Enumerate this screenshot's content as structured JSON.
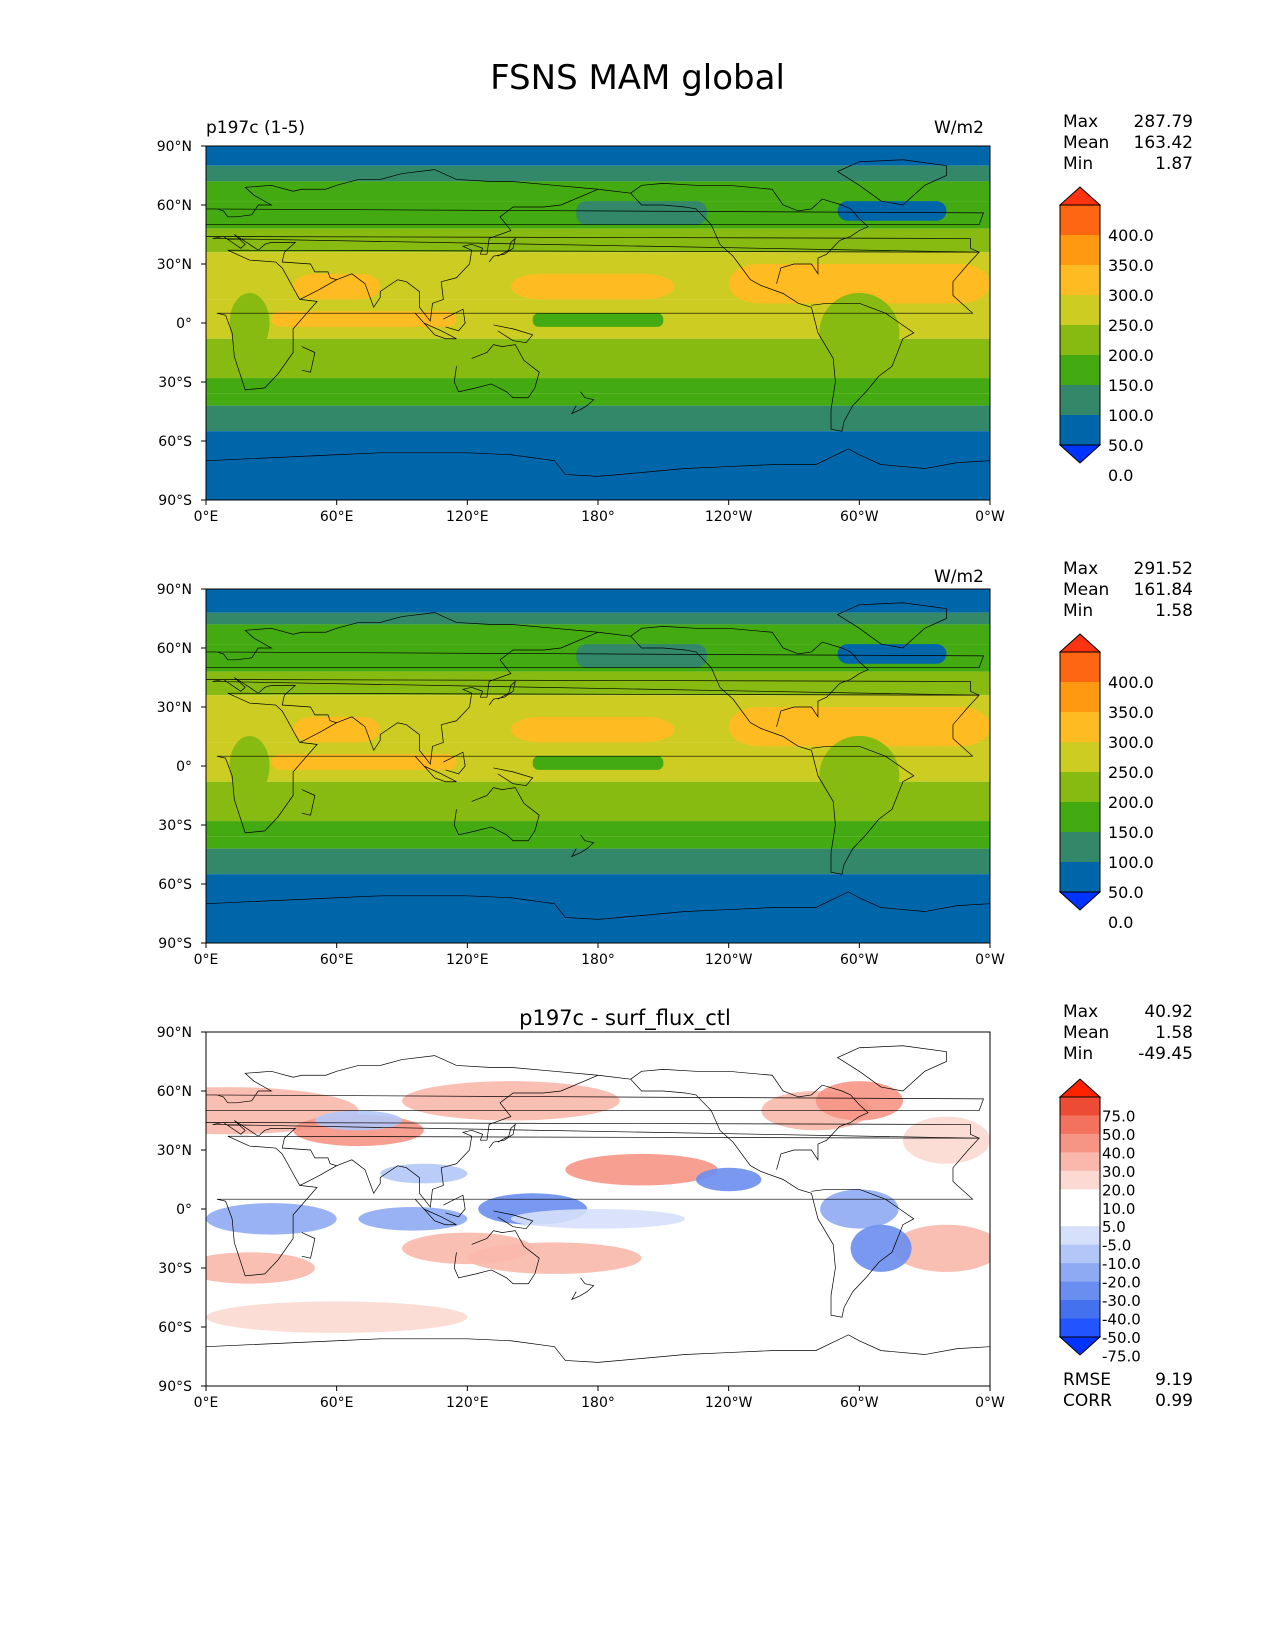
{
  "page_title": "FSNS MAM global",
  "colors": {
    "abs_levels": [
      "#0033ff",
      "#0066aa",
      "#33886a",
      "#44aa11",
      "#88bb11",
      "#cccc22",
      "#ffbb22",
      "#ff9911",
      "#ff6611",
      "#ff3311"
    ],
    "diff_levels": [
      "#0033ff",
      "#2255ff",
      "#4472ee",
      "#6a8ef0",
      "#8eaaf3",
      "#b2c6f7",
      "#d6e0fb",
      "#ffffff",
      "#ffffff",
      "#fcd9d2",
      "#f9b8ab",
      "#f69585",
      "#f3725e",
      "#ee4b36",
      "#ff2200"
    ]
  },
  "panels": [
    {
      "left_label": "p197c (1-5)",
      "right_label": "W/m2",
      "title": "",
      "stats": [
        {
          "label": "Max",
          "value": "287.79"
        },
        {
          "label": "Mean",
          "value": "163.42"
        },
        {
          "label": "Min",
          "value": "1.87"
        }
      ],
      "colorbar_ticks": [
        "400.0",
        "350.0",
        "300.0",
        "250.0",
        "200.0",
        "150.0",
        "100.0",
        "50.0",
        "0.0"
      ]
    },
    {
      "left_label": "",
      "right_label": "W/m2",
      "title": "",
      "stats": [
        {
          "label": "Max",
          "value": "291.52"
        },
        {
          "label": "Mean",
          "value": "161.84"
        },
        {
          "label": "Min",
          "value": "1.58"
        }
      ],
      "colorbar_ticks": [
        "400.0",
        "350.0",
        "300.0",
        "250.0",
        "200.0",
        "150.0",
        "100.0",
        "50.0",
        "0.0"
      ]
    },
    {
      "left_label": "",
      "right_label": "",
      "title": "p197c - surf_flux_ctl",
      "stats": [
        {
          "label": "Max",
          "value": "40.92"
        },
        {
          "label": "Mean",
          "value": "1.58"
        },
        {
          "label": "Min",
          "value": "-49.45"
        }
      ],
      "colorbar_ticks": [
        "75.0",
        "50.0",
        "40.0",
        "30.0",
        "20.0",
        "10.0",
        "5.0",
        "-5.0",
        "-10.0",
        "-20.0",
        "-30.0",
        "-40.0",
        "-50.0",
        "-75.0"
      ],
      "errors": [
        {
          "label": "RMSE",
          "value": "9.19"
        },
        {
          "label": "CORR",
          "value": "0.99"
        }
      ]
    }
  ],
  "chart_data": {
    "type": "heatmap",
    "title": "FSNS MAM global",
    "x_ticks": [
      "0°E",
      "60°E",
      "120°E",
      "180°",
      "120°W",
      "60°W",
      "0°W"
    ],
    "y_ticks": [
      "90°N",
      "60°N",
      "30°N",
      "0°",
      "30°S",
      "60°S",
      "90°S"
    ],
    "xlim": [
      0,
      360
    ],
    "ylim": [
      -90,
      90
    ]
  }
}
